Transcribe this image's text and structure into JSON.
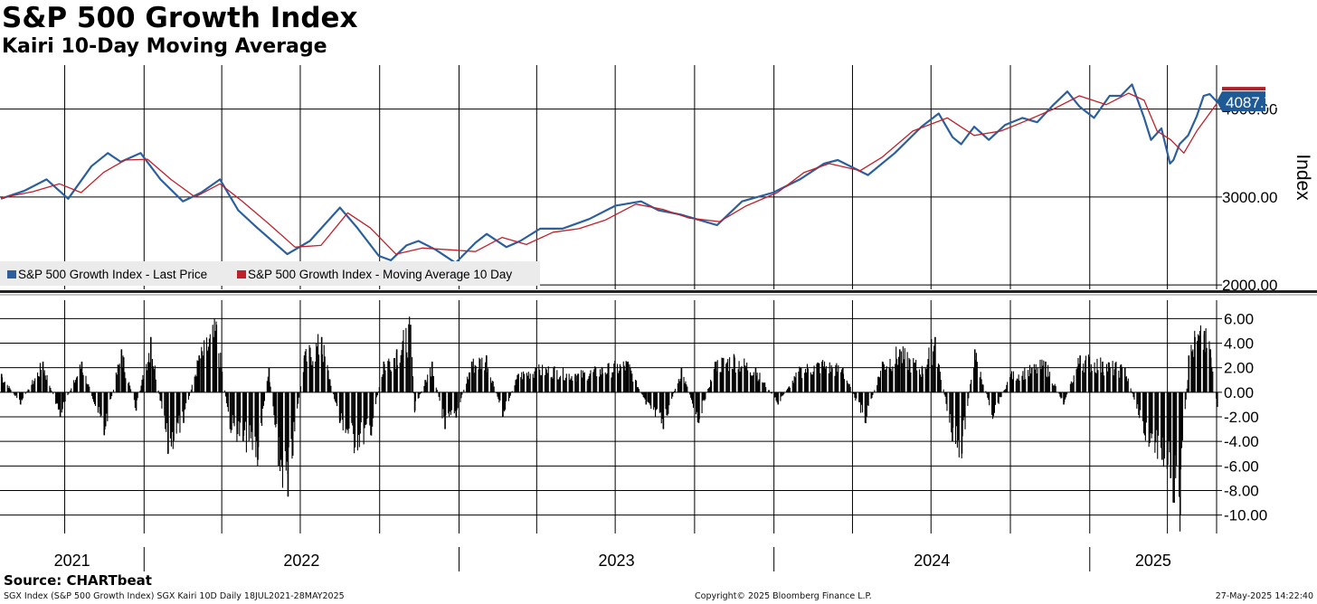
{
  "title": "S&P 500 Growth Index",
  "subtitle": "Kairi 10-Day Moving Average",
  "source": "Source: CHARTbeat",
  "footer": {
    "left": "SGX Index (S&P 500 Growth Index) SGX Kairi 10D  Daily 18JUL2021-28MAY2025",
    "center": "Copyright© 2025 Bloomberg Finance L.P.",
    "right": "27-May-2025 14:22:40"
  },
  "colors": {
    "price": "#2b5f9e",
    "ma": "#c0202a",
    "kairi": "#000000",
    "grid": "#000000",
    "badge": "#1f5a96",
    "badge_ma": "#b0202a"
  },
  "chart_data": [
    {
      "type": "line",
      "name": "price-panel",
      "ylabel": "Index",
      "ylim": [
        1950,
        4500
      ],
      "yticks": [
        2000,
        3000,
        4000
      ],
      "ytick_labels": [
        "2000.00",
        "3000.00",
        "4000.00"
      ],
      "last_value_label": "4087.71",
      "legend": {
        "placement": "bottom-left",
        "entries": [
          "S&P 500 Growth Index - Last Price",
          "S&P 500 Growth Index - Moving Average 10 Day"
        ]
      },
      "x_range": [
        "2021-07-18",
        "2025-05-28"
      ],
      "series": [
        {
          "name": "S&P 500 Growth Index - Last Price",
          "x": [
            "2021-07-19",
            "2021-08-15",
            "2021-09-10",
            "2021-10-05",
            "2021-11-01",
            "2021-11-20",
            "2021-12-05",
            "2021-12-28",
            "2022-01-20",
            "2022-02-15",
            "2022-03-08",
            "2022-03-30",
            "2022-04-20",
            "2022-05-12",
            "2022-06-16",
            "2022-07-12",
            "2022-08-16",
            "2022-09-05",
            "2022-09-30",
            "2022-10-14",
            "2022-11-01",
            "2022-11-15",
            "2022-12-05",
            "2022-12-28",
            "2023-01-20",
            "2023-02-02",
            "2023-02-25",
            "2023-03-13",
            "2023-04-05",
            "2023-05-01",
            "2023-06-01",
            "2023-07-01",
            "2023-07-31",
            "2023-08-20",
            "2023-09-15",
            "2023-10-27",
            "2023-11-25",
            "2023-12-31",
            "2024-01-31",
            "2024-02-28",
            "2024-03-15",
            "2024-04-19",
            "2024-05-20",
            "2024-06-20",
            "2024-07-10",
            "2024-07-26",
            "2024-08-05",
            "2024-08-20",
            "2024-09-06",
            "2024-09-25",
            "2024-10-15",
            "2024-11-01",
            "2024-11-20",
            "2024-12-06",
            "2024-12-20",
            "2025-01-06",
            "2025-01-24",
            "2025-02-06",
            "2025-02-19",
            "2025-03-05",
            "2025-03-13",
            "2025-03-25",
            "2025-04-04",
            "2025-04-08",
            "2025-04-15",
            "2025-04-25",
            "2025-05-05",
            "2025-05-13",
            "2025-05-20",
            "2025-05-28"
          ],
          "y": [
            2980,
            3070,
            3200,
            2980,
            3350,
            3500,
            3400,
            3500,
            3200,
            2950,
            3050,
            3200,
            2850,
            2650,
            2350,
            2500,
            2880,
            2650,
            2330,
            2280,
            2450,
            2500,
            2400,
            2250,
            2480,
            2580,
            2430,
            2500,
            2640,
            2640,
            2750,
            2900,
            2950,
            2850,
            2800,
            2680,
            2950,
            3050,
            3200,
            3380,
            3420,
            3250,
            3500,
            3800,
            3950,
            3680,
            3600,
            3800,
            3650,
            3820,
            3900,
            3850,
            4050,
            4200,
            4030,
            3900,
            4150,
            4150,
            4280,
            3900,
            3650,
            3780,
            3380,
            3420,
            3600,
            3700,
            3920,
            4150,
            4170,
            4087.71
          ]
        },
        {
          "name": "S&P 500 Growth Index - Moving Average 10 Day",
          "x": [
            "2021-07-19",
            "2021-08-25",
            "2021-09-25",
            "2021-10-20",
            "2021-11-15",
            "2021-12-10",
            "2022-01-05",
            "2022-02-01",
            "2022-03-01",
            "2022-03-30",
            "2022-04-25",
            "2022-05-25",
            "2022-06-25",
            "2022-07-25",
            "2022-08-25",
            "2022-09-20",
            "2022-10-20",
            "2022-11-20",
            "2022-12-20",
            "2023-01-20",
            "2023-02-20",
            "2023-03-20",
            "2023-04-20",
            "2023-05-20",
            "2023-06-20",
            "2023-07-25",
            "2023-08-25",
            "2023-09-25",
            "2023-10-30",
            "2023-11-30",
            "2024-01-05",
            "2024-02-05",
            "2024-03-05",
            "2024-04-10",
            "2024-05-05",
            "2024-06-10",
            "2024-07-20",
            "2024-08-20",
            "2024-09-20",
            "2024-10-20",
            "2024-11-20",
            "2024-12-20",
            "2025-01-20",
            "2025-02-15",
            "2025-03-05",
            "2025-03-20",
            "2025-04-05",
            "2025-04-20",
            "2025-05-05",
            "2025-05-28"
          ],
          "y": [
            2990,
            3060,
            3150,
            3050,
            3280,
            3420,
            3430,
            3200,
            3000,
            3150,
            2950,
            2700,
            2430,
            2450,
            2820,
            2650,
            2350,
            2420,
            2400,
            2380,
            2540,
            2460,
            2600,
            2640,
            2740,
            2920,
            2860,
            2760,
            2720,
            2900,
            3050,
            3280,
            3380,
            3300,
            3450,
            3750,
            3900,
            3700,
            3750,
            3870,
            4000,
            4150,
            4050,
            4180,
            4100,
            3750,
            3650,
            3500,
            3750,
            4060
          ]
        }
      ]
    },
    {
      "type": "bar",
      "name": "kairi-panel",
      "series_name": "SGX Kairi 10D",
      "ylim": [
        -11.5,
        7.5
      ],
      "yticks": [
        6,
        4,
        2,
        0,
        -2,
        -4,
        -6,
        -8,
        -10
      ],
      "ytick_labels": [
        "6.00",
        "4.00",
        "2.00",
        "0.00",
        "-2.00",
        "-4.00",
        "-6.00",
        "-8.00",
        "-10.00"
      ],
      "x": [
        "2021-07-19",
        "2021-08-10",
        "2021-09-05",
        "2021-09-25",
        "2021-10-20",
        "2021-11-15",
        "2021-12-05",
        "2021-12-22",
        "2022-01-08",
        "2022-01-28",
        "2022-02-15",
        "2022-03-05",
        "2022-03-25",
        "2022-04-10",
        "2022-04-25",
        "2022-05-12",
        "2022-05-25",
        "2022-06-05",
        "2022-06-16",
        "2022-07-05",
        "2022-07-25",
        "2022-08-15",
        "2022-09-01",
        "2022-09-20",
        "2022-10-05",
        "2022-10-20",
        "2022-11-05",
        "2022-11-10",
        "2022-11-30",
        "2022-12-15",
        "2022-12-28",
        "2023-01-15",
        "2023-02-01",
        "2023-02-20",
        "2023-03-10",
        "2023-03-30",
        "2023-04-20",
        "2023-05-15",
        "2023-06-15",
        "2023-07-15",
        "2023-08-05",
        "2023-08-25",
        "2023-09-15",
        "2023-10-05",
        "2023-10-25",
        "2023-11-15",
        "2023-12-10",
        "2024-01-05",
        "2024-01-31",
        "2024-02-25",
        "2024-03-20",
        "2024-04-15",
        "2024-05-05",
        "2024-05-25",
        "2024-06-20",
        "2024-07-05",
        "2024-07-25",
        "2024-08-05",
        "2024-08-20",
        "2024-09-10",
        "2024-10-01",
        "2024-10-25",
        "2024-11-10",
        "2024-12-01",
        "2024-12-20",
        "2025-01-15",
        "2025-02-10",
        "2025-03-05",
        "2025-03-25",
        "2025-04-04",
        "2025-04-08",
        "2025-04-15",
        "2025-04-25",
        "2025-05-02",
        "2025-05-13",
        "2025-05-20",
        "2025-05-28"
      ],
      "values": [
        1.5,
        -1.0,
        2.5,
        -2.0,
        2.5,
        -3.5,
        3.5,
        -1.5,
        4.5,
        -5.0,
        -2.5,
        3.0,
        5.5,
        -3.0,
        -4.0,
        -5.5,
        2.0,
        -6.0,
        -8.5,
        3.0,
        4.5,
        -2.5,
        -4.5,
        -3.5,
        2.5,
        3.5,
        5.5,
        -1.5,
        2.5,
        -3.0,
        -2.0,
        2.5,
        3.0,
        -2.0,
        1.5,
        2.0,
        2.0,
        1.5,
        2.0,
        2.5,
        -1.0,
        -3.0,
        2.0,
        -2.5,
        2.5,
        3.0,
        2.0,
        -1.0,
        2.0,
        2.5,
        2.0,
        -2.5,
        2.5,
        3.5,
        2.0,
        4.5,
        -4.0,
        -5.0,
        3.5,
        -2.0,
        1.5,
        2.0,
        2.5,
        -1.0,
        3.0,
        2.5,
        2.0,
        -3.5,
        -5.5,
        -7.0,
        -9.0,
        -10.0,
        3.0,
        4.5,
        5.0,
        3.5,
        -1.2
      ]
    }
  ],
  "x_axis": {
    "ticks": [
      "2021",
      "2022",
      "2023",
      "2024",
      "2025"
    ]
  }
}
